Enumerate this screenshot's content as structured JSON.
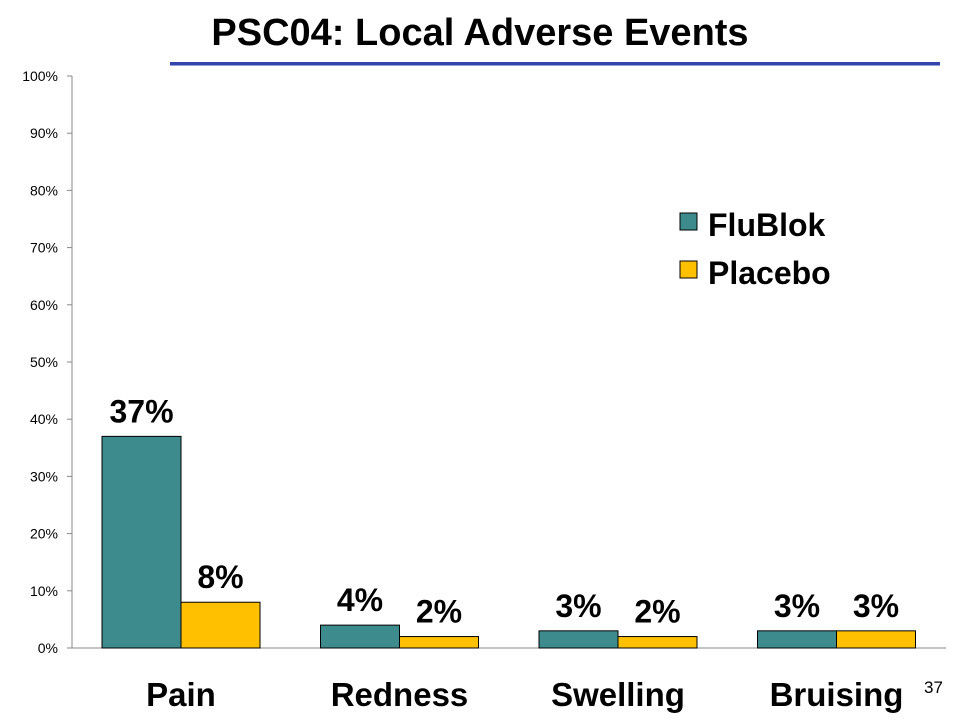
{
  "slide": {
    "title": "PSC04: Local Adverse Events",
    "number": "37"
  },
  "colors": {
    "FluBlok": "#3e8b8e",
    "Placebo": "#ffc000",
    "title_rule": "#3344aa"
  },
  "chart_data": {
    "type": "bar",
    "title": "",
    "xlabel": "",
    "ylabel": "",
    "ylim": [
      0,
      100
    ],
    "ytick_labels": [
      "0%",
      "10%",
      "20%",
      "30%",
      "40%",
      "50%",
      "60%",
      "70%",
      "80%",
      "90%",
      "100%"
    ],
    "categories": [
      "Pain",
      "Redness",
      "Swelling",
      "Bruising"
    ],
    "series": [
      {
        "name": "FluBlok",
        "values": [
          37,
          4,
          3,
          3
        ],
        "labels": [
          "37%",
          "4%",
          "3%",
          "3%"
        ]
      },
      {
        "name": "Placebo",
        "values": [
          8,
          2,
          2,
          3
        ],
        "labels": [
          "8%",
          "2%",
          "2%",
          "3%"
        ]
      }
    ],
    "grid": false,
    "legend_position": "right"
  }
}
